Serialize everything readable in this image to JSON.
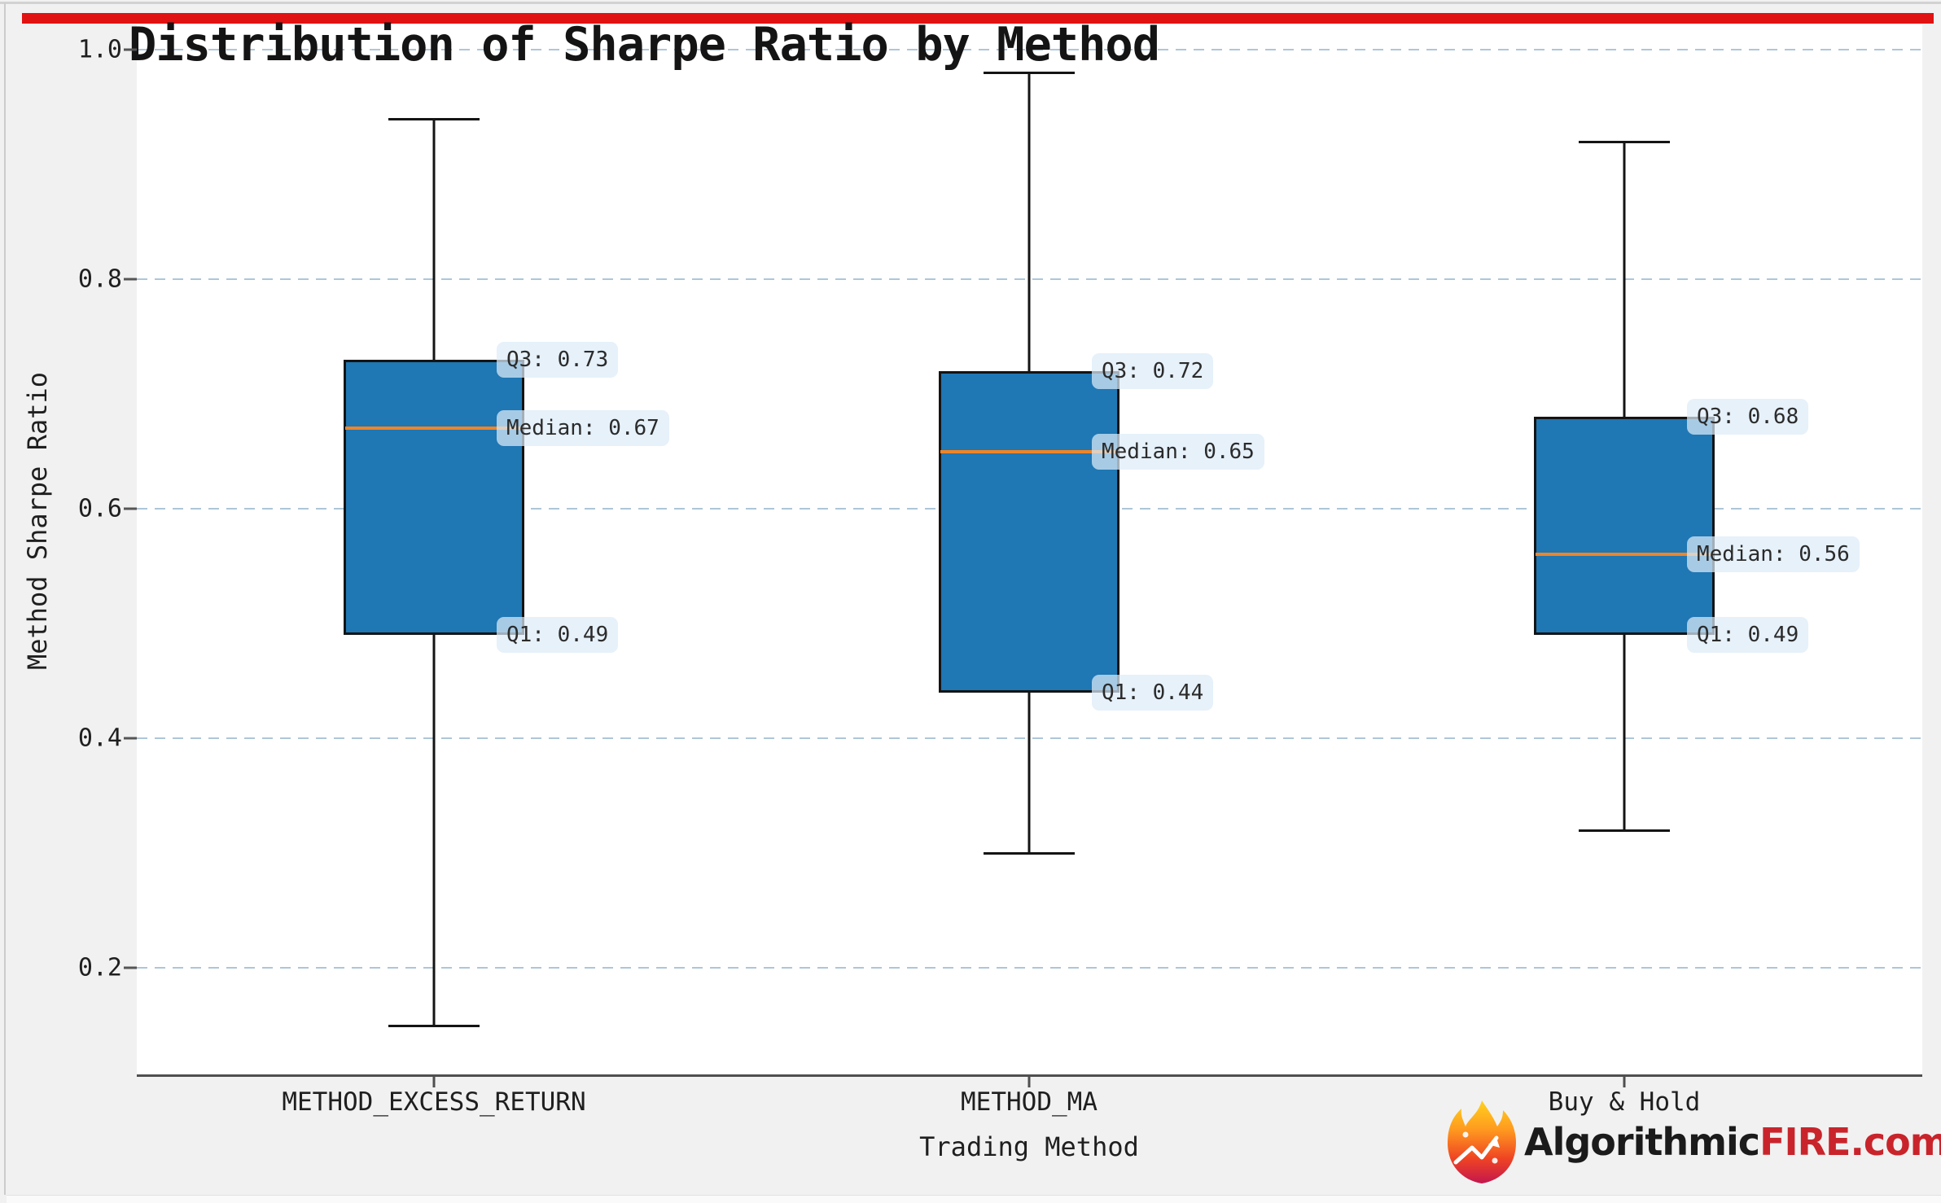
{
  "page": {
    "accent_bar_color": "#e11212",
    "figure_background": "#f1f1f1",
    "plot_background": "#ffffff"
  },
  "chart": {
    "title": "Distribution of Sharpe Ratio by Method",
    "xlabel": "Trading Method",
    "ylabel": "Method Sharpe Ratio"
  },
  "chart_data": {
    "type": "box",
    "title": "Distribution of Sharpe Ratio by Method",
    "xlabel": "Trading Method",
    "ylabel": "Method Sharpe Ratio",
    "grid": "horizontal-dashed",
    "grid_color": "#aec6d8",
    "box_fill_color": "#1f77b4",
    "box_edge_color": "#141414",
    "median_color": "#ef8426",
    "ylim": [
      0.09,
      1.02
    ],
    "yticks": [
      {
        "label": "0.2",
        "value": 0.2
      },
      {
        "label": "0.4",
        "value": 0.4
      },
      {
        "label": "0.6",
        "value": 0.6
      },
      {
        "label": "0.8",
        "value": 0.8
      },
      {
        "label": "1.0",
        "value": 1.0
      }
    ],
    "categories": [
      "METHOD_EXCESS_RETURN",
      "METHOD_MA",
      "Buy & Hold"
    ],
    "series": [
      {
        "category": "METHOD_EXCESS_RETURN",
        "whisker_low": 0.15,
        "q1": 0.49,
        "median": 0.67,
        "q3": 0.73,
        "whisker_high": 0.94,
        "labels": {
          "q3": "Q3: 0.73",
          "median": "Median: 0.67",
          "q1": "Q1: 0.49"
        }
      },
      {
        "category": "METHOD_MA",
        "whisker_low": 0.3,
        "q1": 0.44,
        "median": 0.65,
        "q3": 0.72,
        "whisker_high": 0.98,
        "labels": {
          "q3": "Q3: 0.72",
          "median": "Median: 0.65",
          "q1": "Q1: 0.44"
        }
      },
      {
        "category": "Buy & Hold",
        "whisker_low": 0.32,
        "q1": 0.49,
        "median": 0.56,
        "q3": 0.68,
        "whisker_high": 0.92,
        "labels": {
          "q3": "Q3: 0.68",
          "median": "Median: 0.56",
          "q1": "Q1: 0.49"
        }
      }
    ]
  },
  "watermark": {
    "icon": "flame-icon",
    "text_dark": "Algorithmic",
    "text_red": "FIRE.com",
    "dark_color": "#1b1b1b",
    "red_color": "#c9242b"
  }
}
